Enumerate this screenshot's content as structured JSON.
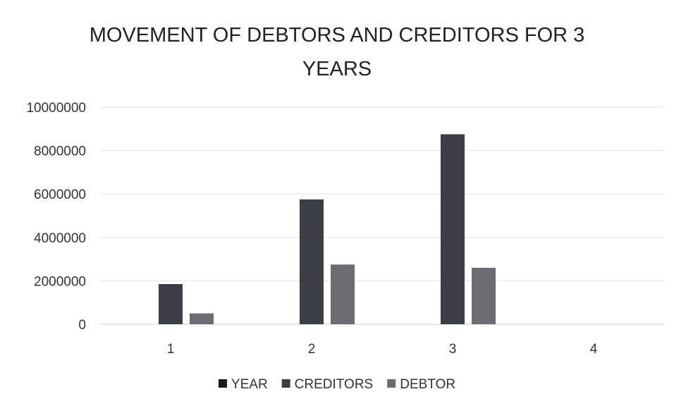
{
  "chart_data": {
    "type": "bar",
    "title_lines": [
      "MOVEMENT OF DEBTORS AND CREDITORS FOR 3",
      "YEARS"
    ],
    "categories": [
      "1",
      "2",
      "3",
      "4"
    ],
    "series": [
      {
        "name": "YEAR",
        "color": "#1a1a1a",
        "values": [
          0,
          0,
          0,
          0
        ]
      },
      {
        "name": "CREDITORS",
        "color": "#3b3e44",
        "values": [
          1850000,
          5750000,
          8750000,
          0
        ]
      },
      {
        "name": "DEBTOR",
        "color": "#6b6d72",
        "values": [
          500000,
          2750000,
          2600000,
          0
        ]
      }
    ],
    "ylim": [
      0,
      10000000
    ],
    "yticks": [
      "0",
      "2000000",
      "4000000",
      "6000000",
      "8000000",
      "10000000"
    ],
    "grid": true,
    "legend": "bottom"
  }
}
